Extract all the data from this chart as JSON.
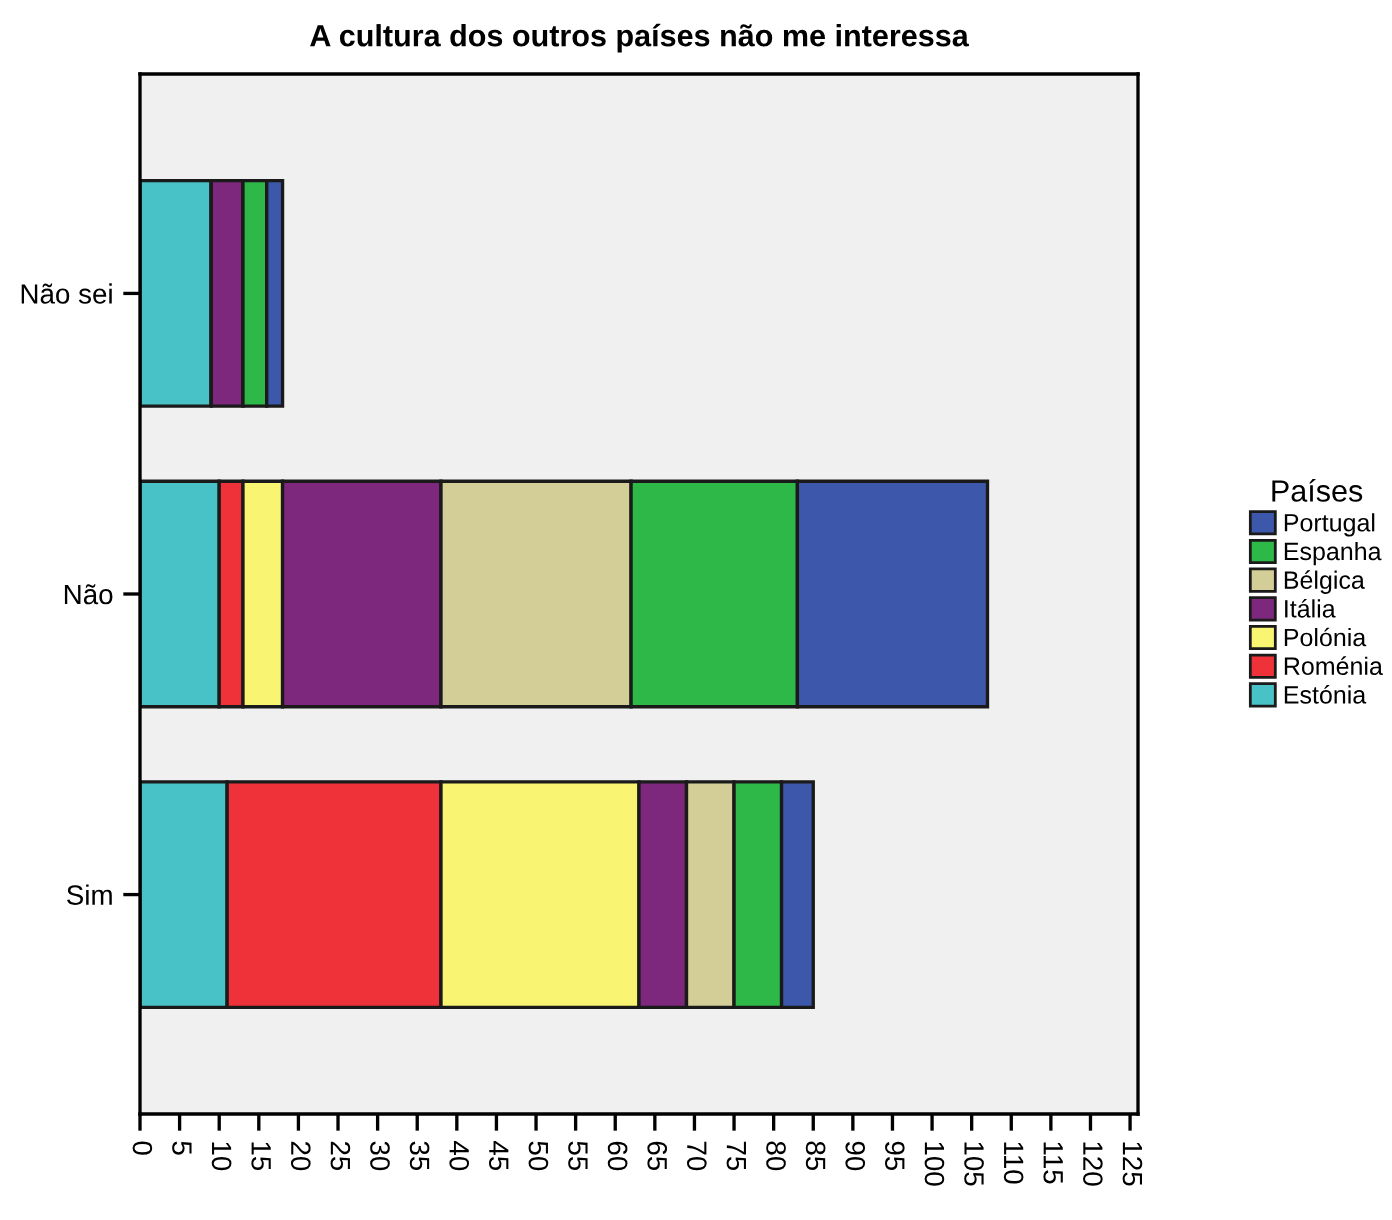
{
  "chart_data": {
    "type": "bar",
    "orientation": "horizontal",
    "stacked": true,
    "title": "A cultura dos outros países não me interessa",
    "legend_title": "Países",
    "legend": "right",
    "grid": false,
    "categories": [
      "Não sei",
      "Não",
      "Sim"
    ],
    "series": [
      {
        "name": "Estónia",
        "color": "#48c2c7",
        "values": [
          9,
          10,
          11
        ]
      },
      {
        "name": "Roménia",
        "color": "#ef323a",
        "values": [
          0,
          3,
          27
        ]
      },
      {
        "name": "Polónia",
        "color": "#f9f572",
        "values": [
          0,
          5,
          25
        ]
      },
      {
        "name": "Itália",
        "color": "#7d287c",
        "values": [
          4,
          20,
          6
        ]
      },
      {
        "name": "Bélgica",
        "color": "#d3ce98",
        "values": [
          0,
          24,
          6
        ]
      },
      {
        "name": "Espanha",
        "color": "#2eb848",
        "values": [
          3,
          21,
          6
        ]
      },
      {
        "name": "Portugal",
        "color": "#3d58ab",
        "values": [
          2,
          24,
          4
        ]
      }
    ],
    "xlim": [
      0,
      126
    ],
    "xticks": [
      0,
      5,
      10,
      15,
      20,
      25,
      30,
      35,
      40,
      45,
      50,
      55,
      60,
      65,
      70,
      75,
      80,
      85,
      90,
      95,
      100,
      105,
      110,
      115,
      120,
      125
    ]
  }
}
